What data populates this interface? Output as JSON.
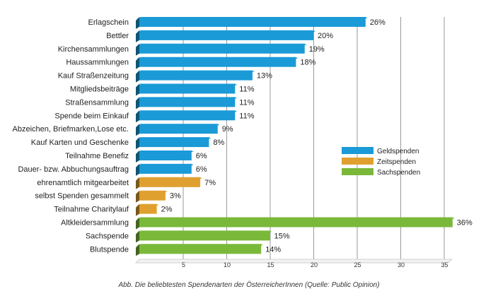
{
  "chart_data": {
    "type": "bar",
    "orientation": "horizontal",
    "caption": "Abb. Die beliebtesten Spendenarten der ÖsterreicherInnen (Quelle: Public Opinion)",
    "xlim": [
      0,
      35
    ],
    "xticks": [
      5,
      10,
      15,
      20,
      25,
      30,
      35
    ],
    "value_suffix": "%",
    "colors": {
      "Geldspenden": "#1a9ad6",
      "Zeitspenden": "#e0a030",
      "Sachspenden": "#7ab83a"
    },
    "legend": {
      "position": "right",
      "entries": [
        "Geldspenden",
        "Zeitspenden",
        "Sachspenden"
      ]
    },
    "categories": [
      "Erlagschein",
      "Bettler",
      "Kirchensammlungen",
      "Haussammlungen",
      "Kauf Straßenzeitung",
      "Mitgliedsbeiträge",
      "Straßensammlung",
      "Spende beim Einkauf",
      "Abzeichen, Briefmarken,Lose etc.",
      "Kauf Karten und Geschenke",
      "Teilnahme Benefiz",
      "Dauer- bzw. Abbuchungsauftrag",
      "ehrenamtlich mitgearbeitet",
      "selbst Spenden gesammelt",
      "Teilnahme Charitylauf",
      "Altkleidersammlung",
      "Sachspende",
      "Blutspende"
    ],
    "values": [
      26,
      20,
      19,
      18,
      13,
      11,
      11,
      11,
      9,
      8,
      6,
      6,
      7,
      3,
      2,
      36,
      15,
      14
    ],
    "groups": [
      "Geldspenden",
      "Geldspenden",
      "Geldspenden",
      "Geldspenden",
      "Geldspenden",
      "Geldspenden",
      "Geldspenden",
      "Geldspenden",
      "Geldspenden",
      "Geldspenden",
      "Geldspenden",
      "Geldspenden",
      "Zeitspenden",
      "Zeitspenden",
      "Zeitspenden",
      "Sachspenden",
      "Sachspenden",
      "Sachspenden"
    ]
  }
}
